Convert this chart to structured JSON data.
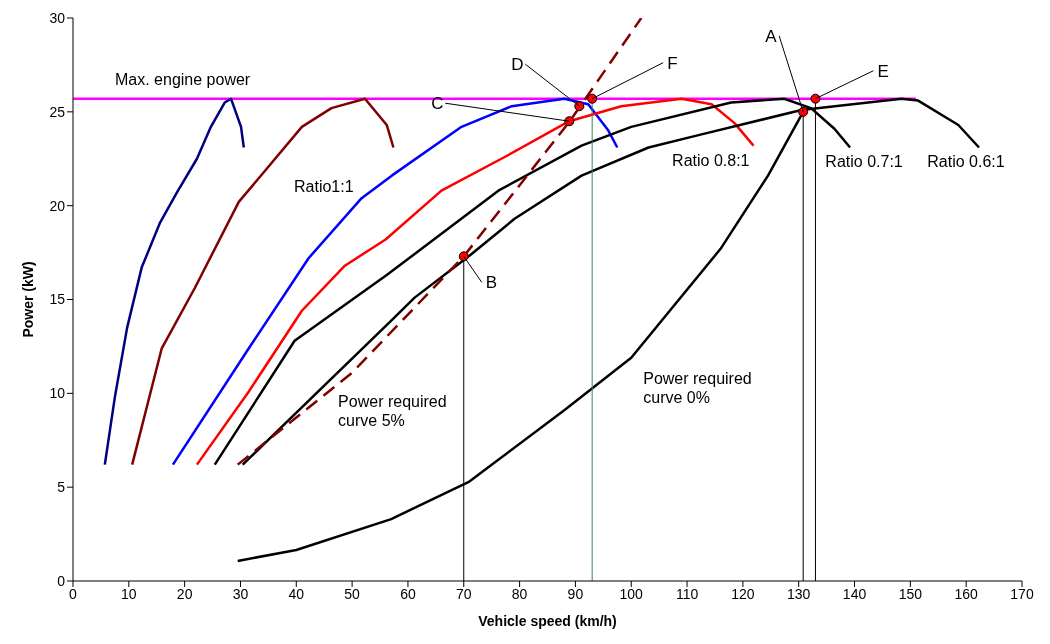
{
  "chart_data": {
    "type": "line",
    "xlabel": "Vehicle speed (km/h)",
    "ylabel": "Power (kW)",
    "xlim": [
      0,
      170
    ],
    "xticks": [
      0,
      10,
      20,
      30,
      40,
      50,
      60,
      70,
      80,
      90,
      100,
      110,
      120,
      130,
      140,
      150,
      160,
      170
    ],
    "ylim": [
      0,
      30
    ],
    "yticks": [
      0,
      5,
      10,
      15,
      20,
      25,
      30
    ],
    "series": [
      {
        "name": "Max. engine power",
        "color": "#ff00ff",
        "x": [
          0,
          151
        ],
        "values": [
          25.7,
          25.7
        ]
      },
      {
        "color": "#000080",
        "x": [
          5.7,
          7.5,
          9.7,
          12.3,
          15.6,
          18.6,
          22.2,
          24.7,
          27.2,
          28.3,
          30.1,
          30.6
        ],
        "values": [
          6.2,
          9.8,
          13.5,
          16.7,
          19.1,
          20.7,
          22.5,
          24.2,
          25.5,
          25.7,
          24.2,
          23.1
        ]
      },
      {
        "color": "#800000",
        "x": [
          10.6,
          15.9,
          21.8,
          29.7,
          41,
          46.3,
          52.3,
          56.2,
          57.4
        ],
        "values": [
          6.2,
          12.4,
          15.6,
          20.2,
          24.2,
          25.2,
          25.7,
          24.3,
          23.1
        ]
      },
      {
        "name": "Ratio1:1",
        "color": "#0000ff",
        "x": [
          17.9,
          31.5,
          42.2,
          51.7,
          57.1,
          69.6,
          78.6,
          88,
          92.3,
          95.9,
          97.5
        ],
        "values": [
          6.2,
          12.4,
          17.2,
          20.4,
          21.6,
          24.2,
          25.3,
          25.7,
          25.4,
          24,
          23.1
        ]
      },
      {
        "name": "Ratio 0.8:1",
        "color": "#ff0000",
        "x": [
          22.2,
          31.5,
          41,
          48.7,
          56,
          66,
          78,
          88.9,
          98.2,
          109,
          114.4,
          118.5,
          121.9
        ],
        "values": [
          6.2,
          10.1,
          14.4,
          16.8,
          18.2,
          20.8,
          22.7,
          24.5,
          25.3,
          25.7,
          25.4,
          24.4,
          23.2
        ]
      },
      {
        "name": "Ratio 0.7:1",
        "color": "#000000",
        "x": [
          25.4,
          39.7,
          56.2,
          76.2,
          91.1,
          100,
          117.9,
          127.4,
          132.2,
          136.4,
          139.2
        ],
        "values": [
          6.2,
          12.8,
          16.3,
          20.8,
          23.2,
          24.2,
          25.5,
          25.7,
          25.2,
          24.1,
          23.1
        ]
      },
      {
        "name": "Ratio 0.6:1",
        "color": "#000000",
        "x": [
          30.4,
          57.1,
          61.2,
          70.9,
          79.1,
          91.1,
          103.1,
          112.6,
          130.5,
          148.4,
          151.4,
          158.6,
          162.3
        ],
        "values": [
          6.2,
          13.9,
          15.1,
          17.3,
          19.3,
          21.6,
          23.1,
          23.8,
          25.1,
          25.7,
          25.6,
          24.3,
          23.1
        ]
      },
      {
        "name": "Power required curve 5%",
        "color": "#800000",
        "line_style": "dashed",
        "x": [
          29.5,
          50,
          70,
          89,
          101.8
        ],
        "values": [
          6.2,
          11.1,
          17.3,
          24.5,
          30
        ]
      },
      {
        "name": "Power required curve 0%",
        "color": "#000000",
        "x": [
          29.5,
          40,
          57,
          71,
          88,
          100,
          116,
          124.5,
          130.8
        ],
        "values": [
          1.07,
          1.65,
          3.3,
          5.3,
          9.1,
          11.9,
          17.7,
          21.6,
          25
        ]
      },
      {
        "color": "#000000",
        "x": [
          70,
          70
        ],
        "values": [
          0,
          17.3
        ]
      },
      {
        "color": "#2e8b57",
        "x": [
          93,
          93
        ],
        "values": [
          0,
          25.7
        ]
      },
      {
        "color": "#000000",
        "x": [
          130.8,
          130.8
        ],
        "values": [
          0,
          25
        ]
      },
      {
        "color": "#000000",
        "x": [
          133,
          133
        ],
        "values": [
          0,
          25.7
        ]
      },
      {
        "type": "scatter",
        "color": "#ff0000",
        "marker": "circle",
        "x": [
          130.8,
          70,
          88.9,
          90.7,
          133,
          93
        ],
        "values": [
          25,
          17.3,
          24.5,
          25.3,
          25.7,
          25.7
        ]
      }
    ],
    "annotations": [
      {
        "text": "A",
        "x": 130.8,
        "y": 25
      },
      {
        "text": "B",
        "x": 70,
        "y": 17.3
      },
      {
        "text": "C",
        "x": 88.9,
        "y": 24.5
      },
      {
        "text": "D",
        "x": 90.7,
        "y": 25.3
      },
      {
        "text": "E",
        "x": 133,
        "y": 25.7
      },
      {
        "text": "F",
        "x": 93,
        "y": 25.7
      }
    ]
  }
}
